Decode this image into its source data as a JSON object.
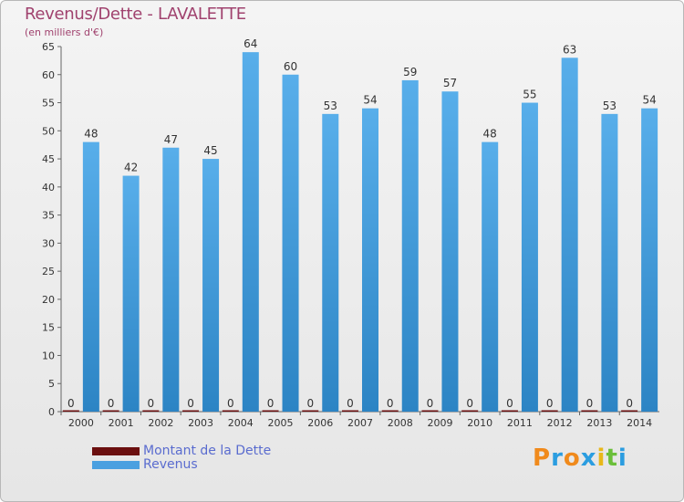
{
  "chart_data": {
    "type": "bar",
    "title": "Revenus/Dette - LAVALETTE",
    "subtitle": "(en milliers d'€)",
    "categories": [
      "2000",
      "2001",
      "2002",
      "2003",
      "2004",
      "2005",
      "2006",
      "2007",
      "2008",
      "2009",
      "2010",
      "2011",
      "2012",
      "2013",
      "2014"
    ],
    "series": [
      {
        "name": "Montant de la Dette",
        "color": "#6b0f0f",
        "values": [
          0,
          0,
          0,
          0,
          0,
          0,
          0,
          0,
          0,
          0,
          0,
          0,
          0,
          0,
          0
        ]
      },
      {
        "name": "Revenus",
        "color": "#4aa0e0",
        "values": [
          48,
          42,
          47,
          45,
          64,
          60,
          53,
          54,
          59,
          57,
          48,
          55,
          63,
          53,
          54
        ]
      }
    ],
    "ylim": [
      0,
      65
    ],
    "yticks": [
      0,
      5,
      10,
      15,
      20,
      25,
      30,
      35,
      40,
      45,
      50,
      55,
      60,
      65
    ],
    "grid": false,
    "legend_position": "bottom-left"
  },
  "logo": {
    "text": "Proxiti",
    "colors": [
      "#f08a1c",
      "#2b9de0",
      "#f08a1c",
      "#2b9de0",
      "#e8b81a",
      "#6bbf3a",
      "#2b9de0"
    ]
  }
}
